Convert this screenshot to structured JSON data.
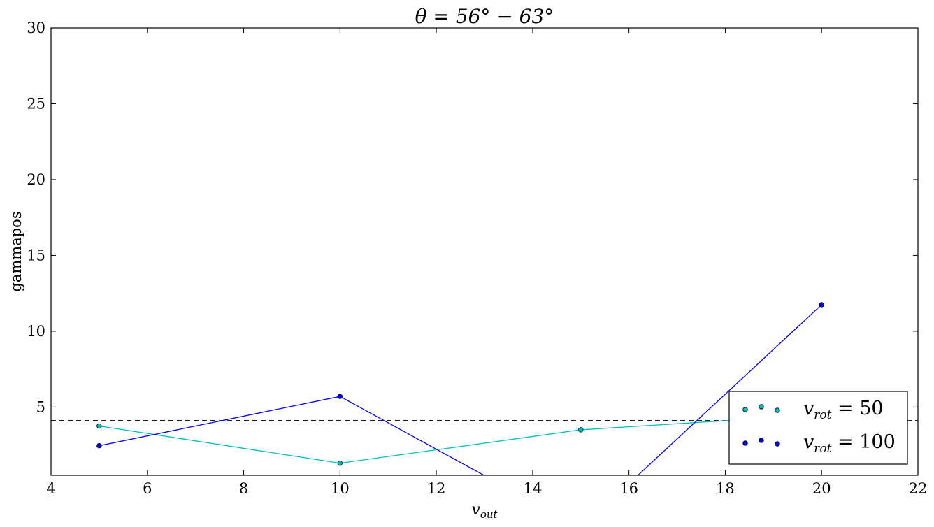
{
  "chart_data": {
    "type": "line",
    "title": "θ = 56° − 63°",
    "xlabel": "v_out",
    "ylabel": "gammapos",
    "xlim": [
      4,
      22
    ],
    "ylim": [
      0.5,
      30
    ],
    "xticks": [
      4,
      6,
      8,
      10,
      12,
      14,
      16,
      18,
      20,
      22
    ],
    "yticks": [
      5,
      10,
      15,
      20,
      25,
      30
    ],
    "grid": false,
    "legend_position": "lower-right",
    "reference_line": {
      "y": 4.1,
      "style": "dashed",
      "color": "#000000"
    },
    "series": [
      {
        "name": "v_rot = 50",
        "legend_label": "v_rot = 50",
        "color": "#00bfbf",
        "x": [
          5,
          10,
          15,
          20
        ],
        "y": [
          3.75,
          1.3,
          3.5,
          4.5
        ]
      },
      {
        "name": "v_rot = 100",
        "legend_label": "v_rot = 100",
        "color": "#0000ff",
        "x": [
          5,
          10,
          15,
          20
        ],
        "y": [
          2.45,
          5.7,
          -3.0,
          11.75
        ]
      }
    ]
  }
}
